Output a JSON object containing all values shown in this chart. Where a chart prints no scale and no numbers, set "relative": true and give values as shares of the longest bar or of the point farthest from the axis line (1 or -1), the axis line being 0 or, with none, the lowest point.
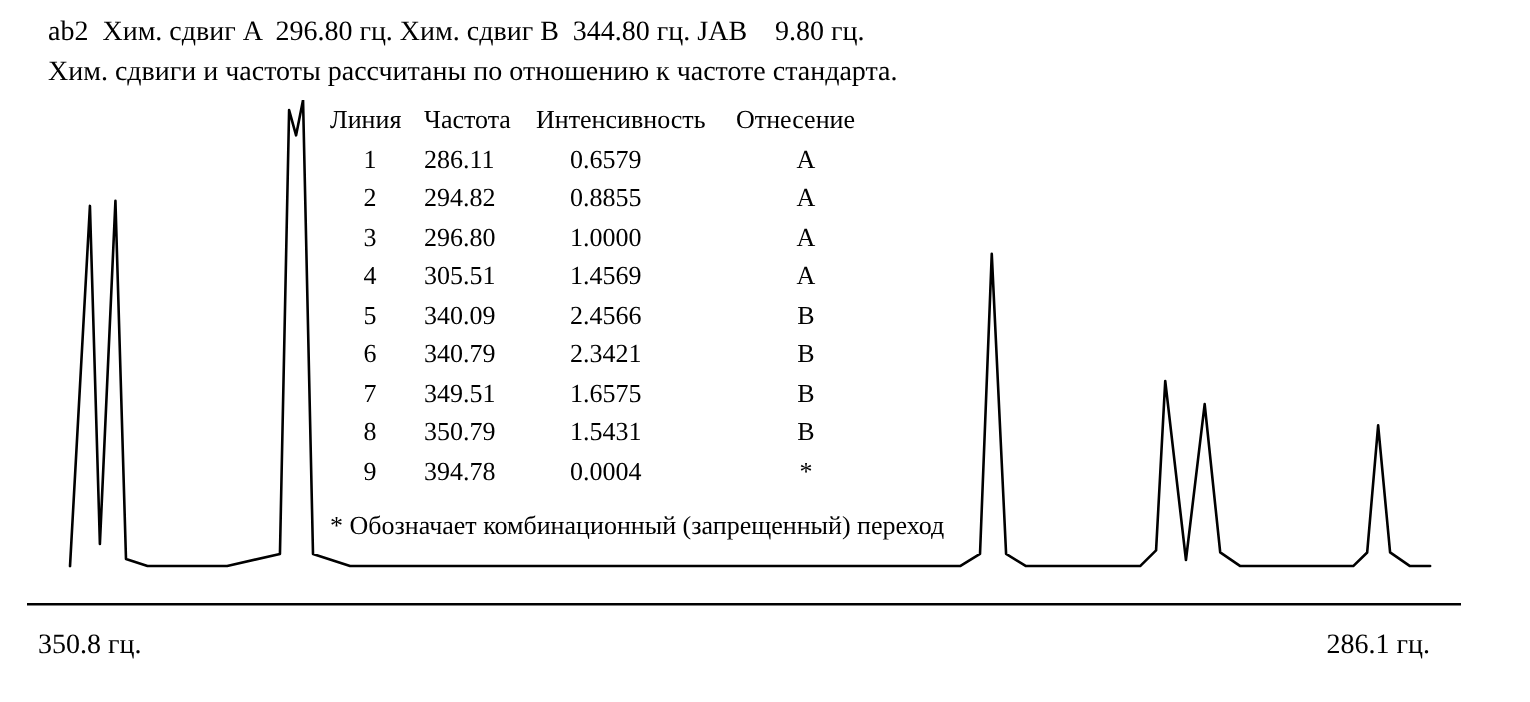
{
  "chart_data": {
    "type": "line",
    "title": "ab2  Хим. сдвиг A  296.80 гц. Хим. сдвиг B  344.80 гц. JAB    9.80 гц.",
    "subtitle": "Хим. сдвиги и частоты рассчитаны по отношению к частоте стандарта.",
    "annotations": [
      "Линия",
      "Частота",
      "Интенсивность",
      "Отнесение",
      "1",
      "286.11",
      "0.6579",
      "A",
      "2",
      "294.82",
      "0.8855",
      "A",
      "3",
      "296.80",
      "1.0000",
      "A",
      "4",
      "305.51",
      "1.4569",
      "A",
      "5",
      "340.09",
      "2.4566",
      "B",
      "6",
      "340.79",
      "2.3421",
      "B",
      "7",
      "349.51",
      "1.6575",
      "B",
      "8",
      "350.79",
      "1.5431",
      "B",
      "9",
      "394.78",
      "0.0004",
      "*",
      "* Обозначает комбинационный (запрещенный) переход"
    ],
    "relative": true,
    "xlim": [
      353.9,
      282.0
    ],
    "xticks": [
      {
        "value": 350.8,
        "label": "350.8 гц."
      },
      {
        "value": 286.1,
        "label": "286.1 гц."
      }
    ],
    "series": [
      {
        "color": "#000000",
        "x": [
          351.79,
          350.79,
          350.29,
          349.51,
          348.98,
          347.9,
          343.9,
          341.25,
          340.79,
          340.44,
          340.09,
          339.59,
          337.73,
          307.1,
          306.1,
          305.51,
          304.79,
          303.79,
          298.06,
          297.26,
          296.8,
          295.76,
          294.82,
          294.04,
          293.03,
          287.36,
          286.66,
          286.11,
          285.51,
          284.51,
          283.5
        ],
        "values": [
          0.076,
          0.79,
          0.12,
          0.8,
          0.09,
          0.076,
          0.076,
          0.1,
          0.98,
          0.93,
          1.0,
          0.1,
          0.076,
          0.076,
          0.1,
          0.695,
          0.1,
          0.076,
          0.076,
          0.107,
          0.443,
          0.088,
          0.397,
          0.103,
          0.076,
          0.076,
          0.103,
          0.355,
          0.103,
          0.076,
          0.076
        ]
      }
    ]
  }
}
